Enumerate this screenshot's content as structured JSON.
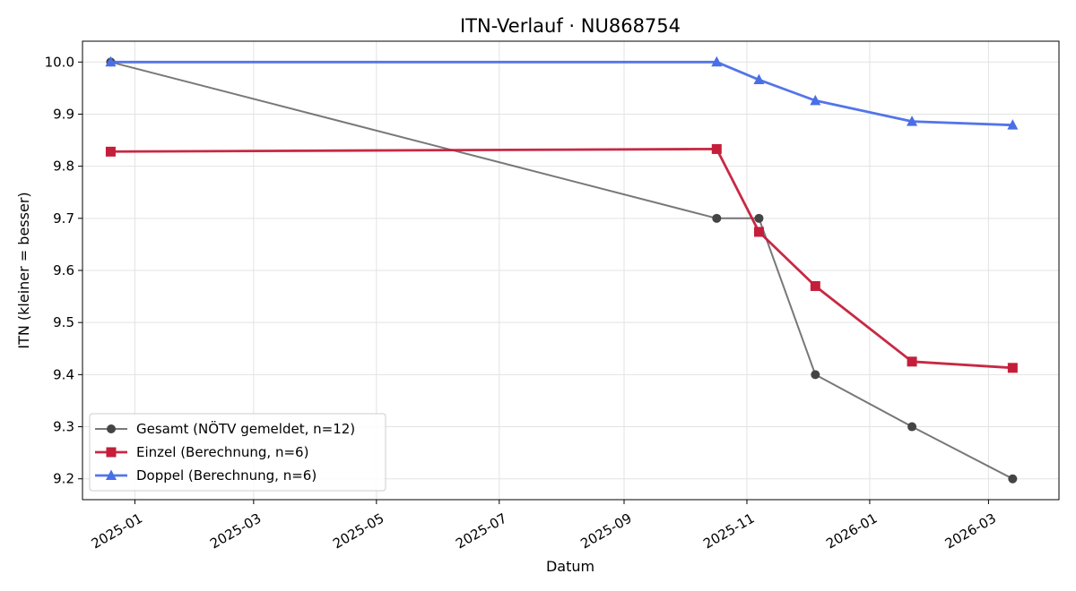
{
  "chart_data": {
    "type": "line",
    "title": "ITN-Verlauf · NU868754",
    "xlabel": "Datum",
    "ylabel": "ITN  (kleiner = besser)",
    "xlim": [
      "2024-12-06",
      "2026-04-05"
    ],
    "ylim": [
      9.16,
      10.04
    ],
    "x_ticks": [
      "2025-01",
      "2025-03",
      "2025-05",
      "2025-07",
      "2025-09",
      "2025-11",
      "2026-01",
      "2026-03"
    ],
    "y_ticks": [
      "9.2",
      "9.3",
      "9.4",
      "9.5",
      "9.6",
      "9.7",
      "9.8",
      "9.9",
      "10.0"
    ],
    "grid": true,
    "legend_position": "lower-left",
    "series": [
      {
        "name": "Gesamt (NÖTV gemeldet, n=12)",
        "color": "#444444",
        "marker": "circle",
        "x": [
          "2024-12-20",
          "2025-10-17",
          "2025-11-07",
          "2025-12-05",
          "2026-01-22",
          "2026-03-13"
        ],
        "y": [
          10.0,
          9.7,
          9.7,
          9.4,
          9.3,
          9.2
        ]
      },
      {
        "name": "Einzel (Berechnung, n=6)",
        "color": "#c41e3a",
        "marker": "square",
        "x": [
          "2024-12-20",
          "2025-10-17",
          "2025-11-07",
          "2025-12-05",
          "2026-01-22",
          "2026-03-13"
        ],
        "y": [
          9.828,
          9.833,
          9.674,
          9.57,
          9.425,
          9.413
        ]
      },
      {
        "name": "Doppel (Berechnung, n=6)",
        "color": "#4a6ee8",
        "marker": "triangle",
        "x": [
          "2024-12-20",
          "2025-10-17",
          "2025-11-07",
          "2025-12-05",
          "2026-01-22",
          "2026-03-13"
        ],
        "y": [
          10.0,
          10.0,
          9.966,
          9.926,
          9.886,
          9.879
        ]
      }
    ]
  }
}
